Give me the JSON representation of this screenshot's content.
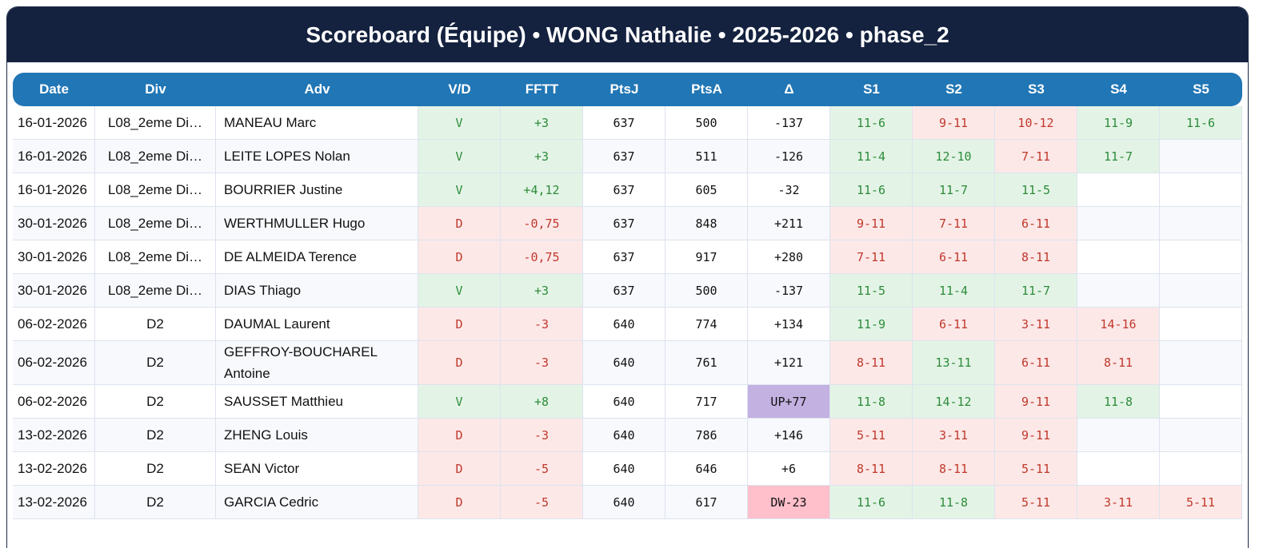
{
  "header": {
    "title": "Scoreboard (Équipe) • WONG Nathalie • 2025-2026 • phase_2"
  },
  "table": {
    "columns": [
      "Date",
      "Div",
      "Adv",
      "V/D",
      "FFTT",
      "PtsJ",
      "PtsA",
      "Δ",
      "S1",
      "S2",
      "S3",
      "S4",
      "S5"
    ],
    "rows": [
      {
        "date": "16-01-2026",
        "div": "L08_2eme Di…",
        "adv": "MANEAU Marc",
        "vd": "V",
        "fftt": "+3",
        "ptsj": "637",
        "ptsa": "500",
        "delta": "-137",
        "sets": [
          "11-6",
          "9-11",
          "10-12",
          "11-9",
          "11-6"
        ]
      },
      {
        "date": "16-01-2026",
        "div": "L08_2eme Di…",
        "adv": "LEITE LOPES Nolan",
        "vd": "V",
        "fftt": "+3",
        "ptsj": "637",
        "ptsa": "511",
        "delta": "-126",
        "sets": [
          "11-4",
          "12-10",
          "7-11",
          "11-7"
        ]
      },
      {
        "date": "16-01-2026",
        "div": "L08_2eme Di…",
        "adv": "BOURRIER Justine",
        "vd": "V",
        "fftt": "+4,12",
        "ptsj": "637",
        "ptsa": "605",
        "delta": "-32",
        "sets": [
          "11-6",
          "11-7",
          "11-5"
        ]
      },
      {
        "date": "30-01-2026",
        "div": "L08_2eme Di…",
        "adv": "WERTHMULLER Hugo",
        "vd": "D",
        "fftt": "-0,75",
        "ptsj": "637",
        "ptsa": "848",
        "delta": "+211",
        "sets": [
          "9-11",
          "7-11",
          "6-11"
        ]
      },
      {
        "date": "30-01-2026",
        "div": "L08_2eme Di…",
        "adv": "DE ALMEIDA Terence",
        "vd": "D",
        "fftt": "-0,75",
        "ptsj": "637",
        "ptsa": "917",
        "delta": "+280",
        "sets": [
          "7-11",
          "6-11",
          "8-11"
        ]
      },
      {
        "date": "30-01-2026",
        "div": "L08_2eme Di…",
        "adv": "DIAS Thiago",
        "vd": "V",
        "fftt": "+3",
        "ptsj": "637",
        "ptsa": "500",
        "delta": "-137",
        "sets": [
          "11-5",
          "11-4",
          "11-7"
        ]
      },
      {
        "date": "06-02-2026",
        "div": "D2",
        "adv": "DAUMAL Laurent",
        "vd": "D",
        "fftt": "-3",
        "ptsj": "640",
        "ptsa": "774",
        "delta": "+134",
        "sets": [
          "11-9",
          "6-11",
          "3-11",
          "14-16"
        ]
      },
      {
        "date": "06-02-2026",
        "div": "D2",
        "adv": "GEFFROY-BOUCHAREL Antoine",
        "vd": "D",
        "fftt": "-3",
        "ptsj": "640",
        "ptsa": "761",
        "delta": "+121",
        "sets": [
          "8-11",
          "13-11",
          "6-11",
          "8-11"
        ]
      },
      {
        "date": "06-02-2026",
        "div": "D2",
        "adv": "SAUSSET Matthieu",
        "vd": "V",
        "fftt": "+8",
        "ptsj": "640",
        "ptsa": "717",
        "delta": "UP+77",
        "sets": [
          "11-8",
          "14-12",
          "9-11",
          "11-8"
        ]
      },
      {
        "date": "13-02-2026",
        "div": "D2",
        "adv": "ZHENG Louis",
        "vd": "D",
        "fftt": "-3",
        "ptsj": "640",
        "ptsa": "786",
        "delta": "+146",
        "sets": [
          "5-11",
          "3-11",
          "9-11"
        ]
      },
      {
        "date": "13-02-2026",
        "div": "D2",
        "adv": "SEAN Victor",
        "vd": "D",
        "fftt": "-5",
        "ptsj": "640",
        "ptsa": "646",
        "delta": "+6",
        "sets": [
          "8-11",
          "8-11",
          "5-11"
        ]
      },
      {
        "date": "13-02-2026",
        "div": "D2",
        "adv": "GARCIA Cedric",
        "vd": "D",
        "fftt": "-5",
        "ptsj": "640",
        "ptsa": "617",
        "delta": "DW-23",
        "sets": [
          "11-6",
          "11-8",
          "5-11",
          "3-11",
          "5-11"
        ]
      }
    ]
  }
}
